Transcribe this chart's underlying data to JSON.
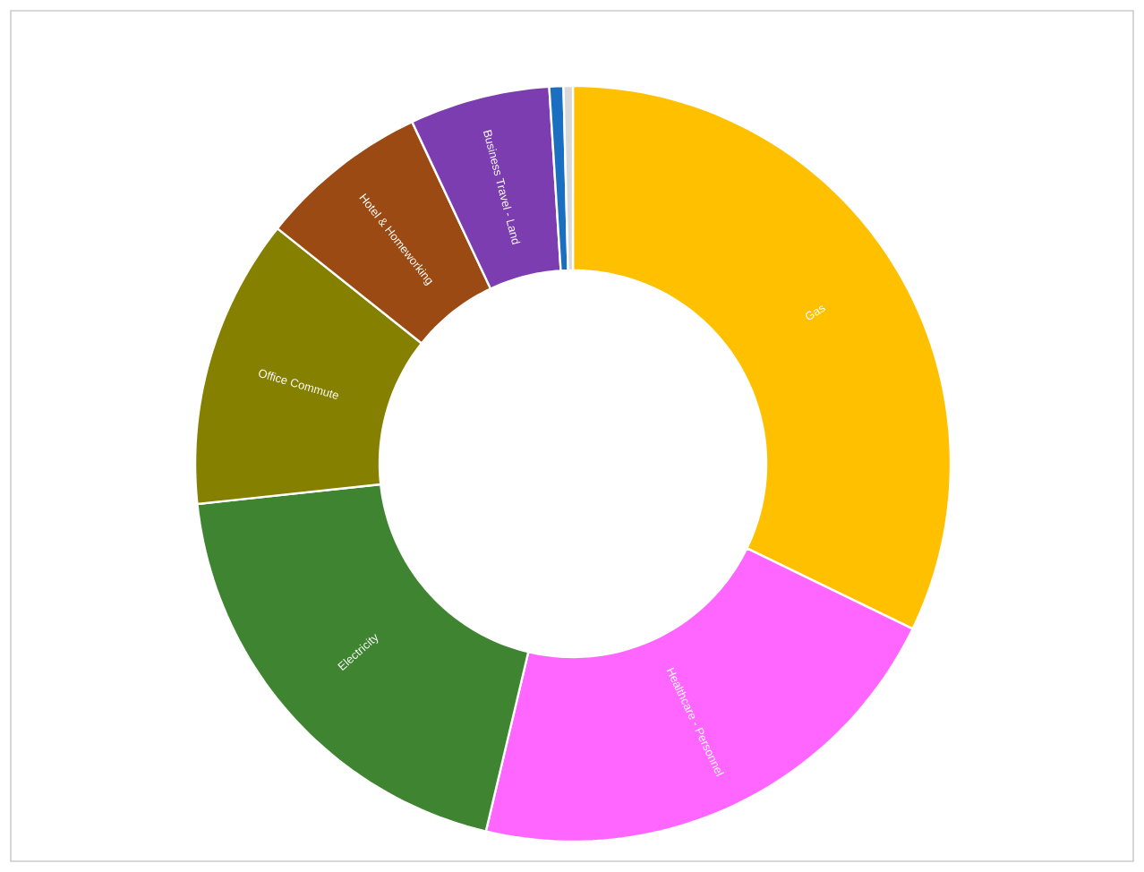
{
  "chart_data": {
    "type": "donut",
    "categories": [
      "Gas",
      "Healthcare - Personnel",
      "Electricity",
      "Office Commute",
      "Hotel & Homeworking",
      "Business Travel - Land",
      null,
      null
    ],
    "values": [
      32.2,
      21.5,
      19.6,
      12.4,
      7.3,
      6.0,
      0.6,
      0.4
    ],
    "colors": [
      "#ffc000",
      "#ff66ff",
      "#3f8430",
      "#868000",
      "#9c4a13",
      "#7b3db0",
      "#1a6fc0",
      "#d9d9d9"
    ]
  }
}
